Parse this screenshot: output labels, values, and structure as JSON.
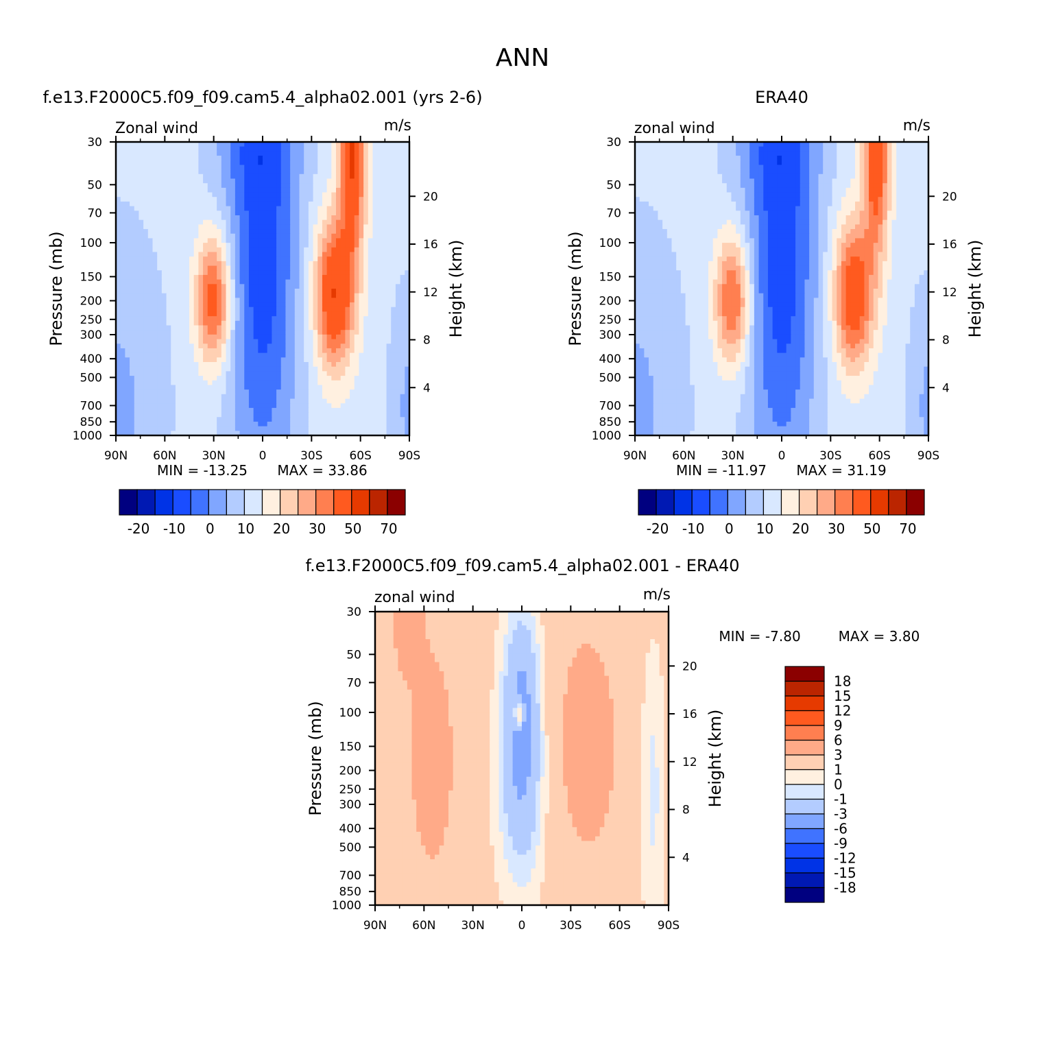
{
  "figure": {
    "title": "ANN"
  },
  "colormaps": {
    "full": [
      "#000080",
      "#0019b3",
      "#0033e6",
      "#1a4dff",
      "#4073ff",
      "#80a6ff",
      "#b3ccff",
      "#d9e8ff",
      "#fff0e0",
      "#ffd0b3",
      "#ffaa88",
      "#ff7f50",
      "#ff5a1f",
      "#e63a00",
      "#bb2500",
      "#8b0000"
    ],
    "diff": [
      "#000080",
      "#0019b3",
      "#0033e6",
      "#1a4dff",
      "#4073ff",
      "#80a6ff",
      "#b3ccff",
      "#d9e8ff",
      "#fff0e0",
      "#ffd0b3",
      "#ffaa88",
      "#ff7f50",
      "#ff5a1f",
      "#e63a00",
      "#bb2500",
      "#8b0000"
    ]
  },
  "chart_data": [
    {
      "type": "heatmap",
      "title": "f.e13.F2000C5.f09_f09.cam5.4_alpha02.001 (yrs 2-6)",
      "left_label": "Zonal wind",
      "right_label": "m/s",
      "xlabel": "",
      "ylabel": "Pressure (mb)",
      "y2label": "Height (km)",
      "x_ticks": [
        "90N",
        "60N",
        "30N",
        "0",
        "30S",
        "60S",
        "90S"
      ],
      "y_ticks": [
        "30",
        "50",
        "70",
        "100",
        "150",
        "200",
        "250",
        "300",
        "400",
        "500",
        "700",
        "850",
        "1000"
      ],
      "y2_ticks": [
        "20",
        "16",
        "12",
        "8",
        "4"
      ],
      "x_range": [
        90,
        -90
      ],
      "y_range": [
        1000,
        30
      ],
      "y_scale": "log",
      "min_label": "MIN = -13.25",
      "max_label": "MAX = 33.86",
      "min": -13.25,
      "max": 33.86,
      "colorbar": {
        "orientation": "horizontal",
        "tick_labels": [
          "-20",
          "-10",
          "0",
          "10",
          "20",
          "30",
          "50",
          "70"
        ]
      },
      "jets": [
        {
          "lat": 30,
          "p": 200,
          "u": 26
        },
        {
          "lat": -45,
          "p": 180,
          "u": 34
        },
        {
          "lat": -55,
          "p": 30,
          "u": 33
        }
      ]
    },
    {
      "type": "heatmap",
      "title": "ERA40",
      "left_label": "zonal wind",
      "right_label": "m/s",
      "xlabel": "",
      "ylabel": "Pressure (mb)",
      "y2label": "Height (km)",
      "x_ticks": [
        "90N",
        "60N",
        "30N",
        "0",
        "30S",
        "60S",
        "90S"
      ],
      "y_ticks": [
        "30",
        "50",
        "70",
        "100",
        "150",
        "200",
        "250",
        "300",
        "400",
        "500",
        "700",
        "850",
        "1000"
      ],
      "y2_ticks": [
        "20",
        "16",
        "12",
        "8",
        "4"
      ],
      "x_range": [
        90,
        -90
      ],
      "y_range": [
        1000,
        30
      ],
      "y_scale": "log",
      "min_label": "MIN = -11.97",
      "max_label": "MAX = 31.19",
      "min": -11.97,
      "max": 31.19,
      "colorbar": {
        "orientation": "horizontal",
        "tick_labels": [
          "-20",
          "-10",
          "0",
          "10",
          "20",
          "30",
          "50",
          "70"
        ]
      },
      "jets": [
        {
          "lat": 30,
          "p": 200,
          "u": 25
        },
        {
          "lat": -40,
          "p": 200,
          "u": 31
        },
        {
          "lat": -58,
          "p": 30,
          "u": 30
        }
      ]
    },
    {
      "type": "heatmap",
      "title": "f.e13.F2000C5.f09_f09.cam5.4_alpha02.001 - ERA40",
      "left_label": "zonal wind",
      "right_label": "m/s",
      "xlabel": "",
      "ylabel": "Pressure (mb)",
      "y2label": "Height (km)",
      "x_ticks": [
        "90N",
        "60N",
        "30N",
        "0",
        "30S",
        "60S",
        "90S"
      ],
      "y_ticks": [
        "30",
        "50",
        "70",
        "100",
        "150",
        "200",
        "250",
        "300",
        "400",
        "500",
        "700",
        "850",
        "1000"
      ],
      "y2_ticks": [
        "20",
        "16",
        "12",
        "8",
        "4"
      ],
      "x_range": [
        90,
        -90
      ],
      "y_range": [
        1000,
        30
      ],
      "y_scale": "log",
      "min_label": "MIN = -7.80",
      "max_label": "MAX = 3.80",
      "min": -7.8,
      "max": 3.8,
      "colorbar": {
        "orientation": "vertical",
        "tick_labels": [
          "18",
          "15",
          "12",
          "9",
          "6",
          "3",
          "1",
          "0",
          "-1",
          "-3",
          "-6",
          "-9",
          "-12",
          "-15",
          "-18"
        ]
      }
    }
  ]
}
